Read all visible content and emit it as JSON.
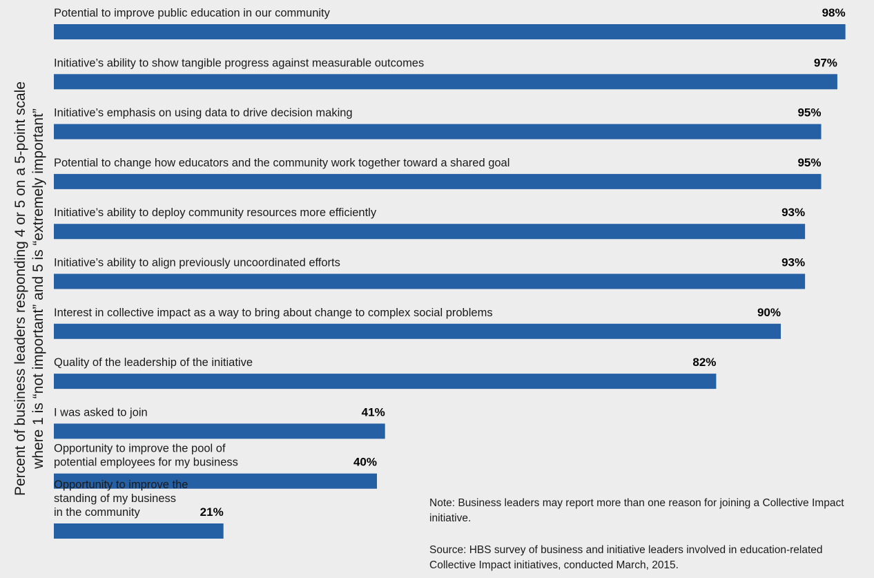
{
  "chart_data": {
    "type": "bar",
    "orientation": "horizontal",
    "ylabel_lines": [
      "Percent of business leaders responding 4 or 5 on a 5-point scale",
      "where 1 is “not important” and 5 is “extremely important”"
    ],
    "xlim": [
      0,
      100
    ],
    "grid": false,
    "bar_color": "#2660a4",
    "categories": [
      [
        "Potential to improve public education in our community"
      ],
      [
        "Initiative’s ability to show tangible progress against measurable outcomes"
      ],
      [
        "Initiative’s emphasis on using data to drive decision making"
      ],
      [
        "Potential to change how educators and the community work together toward a shared goal"
      ],
      [
        "Initiative’s ability to deploy community resources more efficiently"
      ],
      [
        "Initiative’s ability to align previously uncoordinated efforts"
      ],
      [
        "Interest in collective impact as a way to bring about change to complex social problems"
      ],
      [
        "Quality of the leadership of the initiative"
      ],
      [
        "I was asked to join"
      ],
      [
        "Opportunity to improve the pool of",
        "potential employees for my business"
      ],
      [
        "Opportunity to improve the",
        "standing of my business",
        "in the community"
      ]
    ],
    "values": [
      98,
      97,
      95,
      95,
      93,
      93,
      90,
      82,
      41,
      40,
      21
    ],
    "value_labels": [
      "98%",
      "97%",
      "95%",
      "95%",
      "93%",
      "93%",
      "90%",
      "82%",
      "41%",
      "40%",
      "21%"
    ]
  },
  "notes": {
    "note": "Note: Business leaders may report more than one reason for joining a Collective Impact initiative.",
    "source": "Source: HBS survey of business and initiative leaders involved in education-related Collective Impact initiatives, conducted March, 2015."
  }
}
